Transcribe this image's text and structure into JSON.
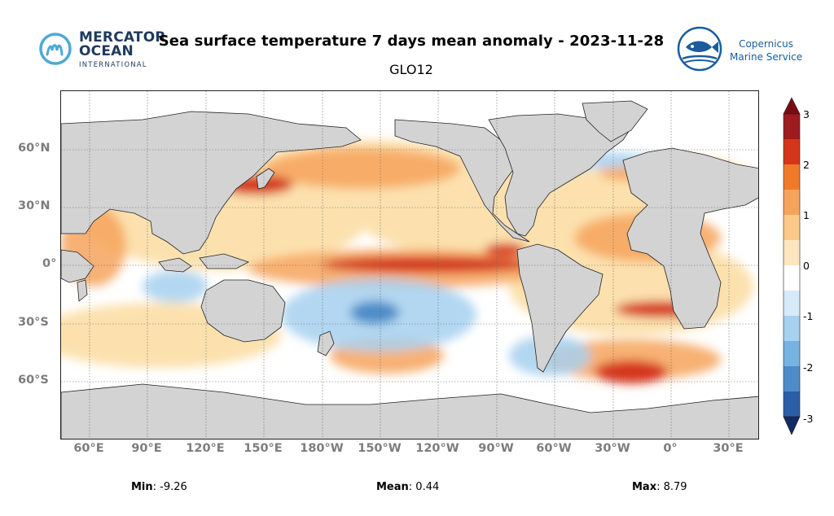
{
  "header": {
    "title": "Sea surface temperature 7 days mean anomaly - 2023-11-28",
    "subtitle": "GLO12"
  },
  "logos": {
    "mercator": {
      "line1": "MERCATOR",
      "line2": "OCEAN",
      "line3": "INTERNATIONAL",
      "color": "#1f3a5f"
    },
    "copernicus": {
      "line1": "Copernicus",
      "line2": "Marine Service",
      "color": "#1a5c9c"
    }
  },
  "map": {
    "lat_labels": [
      "60°N",
      "30°N",
      "0°",
      "30°S",
      "60°S"
    ],
    "lon_labels": [
      "60°E",
      "90°E",
      "120°E",
      "150°E",
      "180°W",
      "150°W",
      "120°W",
      "90°W",
      "60°W",
      "30°W",
      "0°",
      "30°E"
    ],
    "land_color": "#d3d3d3",
    "warm_color": "#e8551d",
    "cool_color": "#4d8cc8"
  },
  "colorbar": {
    "ticks": [
      "3",
      "2",
      "1",
      "0",
      "-1",
      "-2",
      "-3"
    ],
    "range": [
      -3,
      3
    ]
  },
  "stats": {
    "min_label": "Min",
    "min_value": ": -9.26",
    "mean_label": "Mean",
    "mean_value": ": 0.44",
    "max_label": "Max",
    "max_value": ": 8.79"
  }
}
